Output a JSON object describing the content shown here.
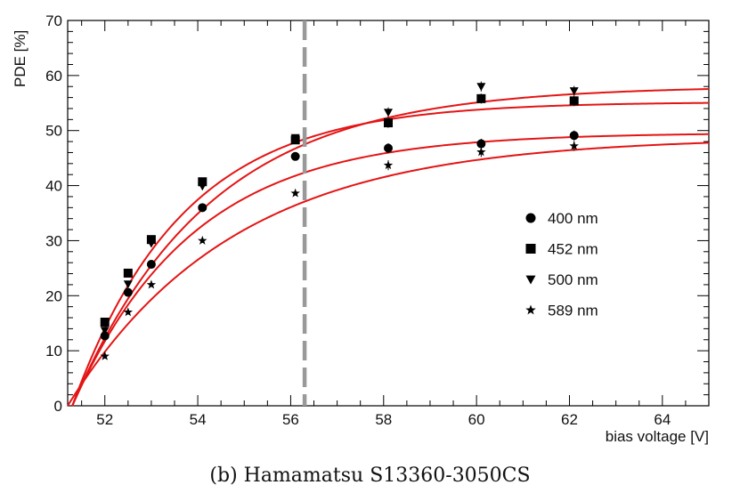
{
  "caption": "(b) Hamamatsu S13360-3050CS",
  "colors": {
    "fit": "#e41414",
    "marker": "#000000",
    "vline": "#999999"
  },
  "chart_data": {
    "type": "scatter",
    "xlabel": "bias voltage [V]",
    "ylabel": "PDE [%]",
    "xlim": [
      51.2,
      65.0
    ],
    "ylim": [
      0,
      70
    ],
    "xticks": [
      52,
      54,
      56,
      58,
      60,
      62,
      64
    ],
    "yticks": [
      0,
      10,
      20,
      30,
      40,
      50,
      60,
      70
    ],
    "vertical_line": {
      "x": 56.3,
      "style": "dashed"
    },
    "legend_position": "right-middle",
    "series": [
      {
        "name": "400 nm",
        "marker": "circle",
        "x": [
          52.0,
          52.5,
          53.0,
          54.1,
          56.1,
          58.1,
          60.1,
          62.1
        ],
        "y": [
          12.7,
          20.6,
          25.7,
          36.0,
          45.3,
          46.8,
          47.6,
          49.1
        ],
        "fit": {
          "v0": 51.3,
          "pmax": 49.6,
          "k": 0.385
        }
      },
      {
        "name": "452 nm",
        "marker": "square",
        "x": [
          52.0,
          52.5,
          53.0,
          54.1,
          56.1,
          58.1,
          60.1,
          62.1
        ],
        "y": [
          15.2,
          24.1,
          30.2,
          40.7,
          48.3,
          51.4,
          55.8,
          55.4
        ],
        "fit": {
          "v0": 51.3,
          "pmax": 55.2,
          "k": 0.42
        }
      },
      {
        "name": "500 nm",
        "marker": "triangle-down",
        "x": [
          52.0,
          52.5,
          53.0,
          54.1,
          56.1,
          58.1,
          60.1,
          62.1
        ],
        "y": [
          13.7,
          22.1,
          29.5,
          39.9,
          48.7,
          53.3,
          58.0,
          57.2
        ],
        "fit": {
          "v0": 51.3,
          "pmax": 58.1,
          "k": 0.34
        }
      },
      {
        "name": "589 nm",
        "marker": "star",
        "x": [
          52.0,
          52.5,
          53.0,
          54.1,
          56.1,
          58.1,
          60.1,
          62.1
        ],
        "y": [
          9.0,
          17.0,
          22.0,
          30.0,
          38.6,
          43.7,
          46.1,
          47.2
        ],
        "fit": {
          "v0": 51.2,
          "pmax": 48.8,
          "k": 0.28
        }
      }
    ]
  }
}
